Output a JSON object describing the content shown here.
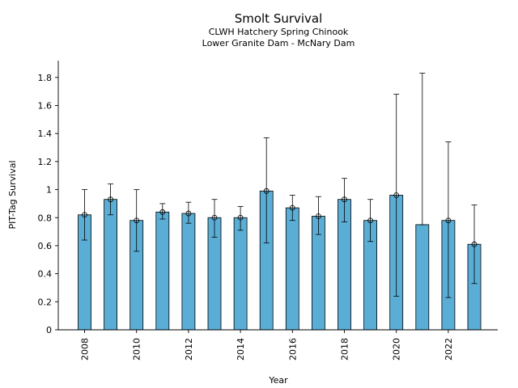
{
  "chart_data": {
    "type": "bar",
    "title": "Smolt Survival",
    "subtitle_lines": [
      "CLWH Hatchery Spring Chinook",
      "Lower Granite Dam - McNary Dam"
    ],
    "xlabel": "Year",
    "ylabel": "PIT-Tag Survival",
    "ylim": [
      0,
      1.92
    ],
    "yticks": [
      0,
      0.2,
      0.4,
      0.6,
      0.8,
      1,
      1.2,
      1.4,
      1.6,
      1.8
    ],
    "ytick_labels": [
      "0",
      "0.2",
      "0.4",
      "0.6",
      "0.8",
      "1",
      "1.2",
      "1.4",
      "1.6",
      "1.8"
    ],
    "xtick_labels": [
      "2008",
      "2010",
      "2012",
      "2014",
      "2016",
      "2018",
      "2020",
      "2022"
    ],
    "grid": false,
    "colors": {
      "bar": "#5aaed6",
      "edge": "#000000"
    },
    "categories": [
      2008,
      2009,
      2010,
      2011,
      2012,
      2013,
      2014,
      2015,
      2016,
      2017,
      2018,
      2019,
      2020,
      2021,
      2022,
      2023
    ],
    "values": [
      0.82,
      0.93,
      0.78,
      0.84,
      0.83,
      0.8,
      0.8,
      0.99,
      0.87,
      0.81,
      0.93,
      0.78,
      0.96,
      0.75,
      0.78,
      0.61
    ],
    "points": [
      0.82,
      0.93,
      0.78,
      0.84,
      0.83,
      0.8,
      0.8,
      0.99,
      0.87,
      0.81,
      0.93,
      0.78,
      0.96,
      null,
      0.78,
      0.61
    ],
    "error_low": [
      0.64,
      0.82,
      0.56,
      0.79,
      0.76,
      0.66,
      0.71,
      0.62,
      0.78,
      0.68,
      0.77,
      0.63,
      0.24,
      0.75,
      0.23,
      0.33
    ],
    "error_high": [
      1.0,
      1.04,
      1.0,
      0.9,
      0.91,
      0.93,
      0.88,
      1.37,
      0.96,
      0.95,
      1.08,
      0.93,
      1.68,
      1.83,
      1.34,
      0.89
    ]
  }
}
